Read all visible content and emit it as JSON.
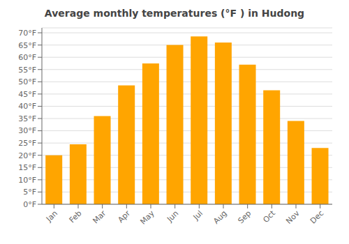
{
  "chart_data": {
    "type": "bar",
    "title": "Average monthly temperatures (°F ) in Hudong",
    "categories": [
      "Jan",
      "Feb",
      "Mar",
      "Apr",
      "May",
      "Jun",
      "Jul",
      "Aug",
      "Sep",
      "Oct",
      "Nov",
      "Dec"
    ],
    "values": [
      20,
      24.5,
      36,
      48.5,
      57.5,
      65,
      68.5,
      66,
      57,
      46.5,
      34,
      23
    ],
    "color": "#FFA500",
    "ylim": [
      0,
      72
    ],
    "yticks": [
      {
        "value": 0,
        "label": "0°F"
      },
      {
        "value": 5,
        "label": "5°F"
      },
      {
        "value": 10,
        "label": "10°F"
      },
      {
        "value": 15,
        "label": "15°F"
      },
      {
        "value": 20,
        "label": "20°F"
      },
      {
        "value": 25,
        "label": "25°F"
      },
      {
        "value": 30,
        "label": "30°F"
      },
      {
        "value": 35,
        "label": "35°F"
      },
      {
        "value": 40,
        "label": "40°F"
      },
      {
        "value": 45,
        "label": "45°F"
      },
      {
        "value": 50,
        "label": "50°F"
      },
      {
        "value": 55,
        "label": "55°F"
      },
      {
        "value": 60,
        "label": "60°F"
      },
      {
        "value": 65,
        "label": "65°F"
      },
      {
        "value": 70,
        "label": "70°F"
      }
    ],
    "grid": true
  }
}
